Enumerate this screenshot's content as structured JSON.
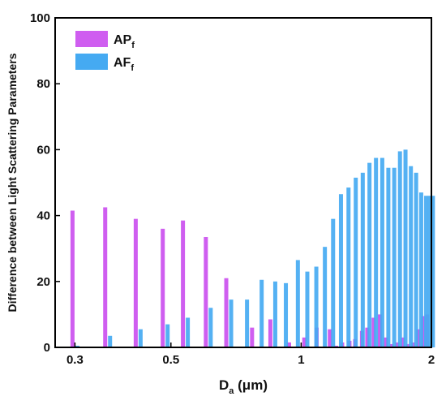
{
  "chart_data": {
    "type": "bar",
    "x_scale": "log",
    "xlim": [
      0.27,
      2.0
    ],
    "ylim": [
      0,
      100
    ],
    "xticks": [
      "0.3",
      "0.5",
      "1",
      "2"
    ],
    "yticks": [
      "0",
      "20",
      "40",
      "60",
      "80",
      "100"
    ],
    "xlabel_main": "D",
    "xlabel_sub": "a",
    "xlabel_unit": " (μm)",
    "ylabel": "Difference between Light Scattering Parameters",
    "grid": false,
    "legend_position": "top-left",
    "colors": {
      "APf": "#cf5ef0",
      "AFf": "#45aaf2"
    },
    "series": [
      {
        "name": "APf",
        "legend_main": "AP",
        "legend_sub": "f",
        "x": [
          0.3,
          0.357,
          0.42,
          0.485,
          0.54,
          0.61,
          0.68,
          0.78,
          0.86,
          0.95,
          1.03,
          1.1,
          1.18,
          1.22,
          1.26,
          1.31,
          1.35,
          1.4,
          1.44,
          1.49,
          1.54,
          1.59,
          1.64,
          1.69,
          1.74,
          1.79,
          1.84,
          1.89,
          1.94,
          1.98
        ],
        "values": [
          41.5,
          42.5,
          39,
          36,
          38.5,
          33.5,
          21,
          6,
          8.5,
          1.5,
          3,
          6,
          5.5,
          0.5,
          1.5,
          2,
          2.5,
          5,
          6,
          9,
          10,
          3,
          1,
          1.5,
          3,
          1,
          1.5,
          5.5,
          9.5,
          10
        ]
      },
      {
        "name": "AFf",
        "legend_main": "AF",
        "legend_sub": "f",
        "x": [
          0.3,
          0.357,
          0.42,
          0.485,
          0.54,
          0.61,
          0.68,
          0.74,
          0.8,
          0.86,
          0.91,
          0.97,
          1.02,
          1.07,
          1.12,
          1.17,
          1.22,
          1.27,
          1.32,
          1.37,
          1.42,
          1.47,
          1.52,
          1.57,
          1.62,
          1.67,
          1.72,
          1.77,
          1.82,
          1.87,
          1.92,
          1.96,
          1.99
        ],
        "values": [
          0.5,
          3.5,
          5.5,
          7,
          9,
          12,
          14.5,
          14.5,
          20.5,
          20,
          19.5,
          26.5,
          23,
          24.5,
          30.5,
          39,
          46.5,
          48.5,
          51.5,
          53,
          56,
          57.5,
          57.5,
          54.5,
          54.5,
          59.5,
          60,
          55,
          53,
          47,
          46,
          46,
          46
        ]
      }
    ]
  }
}
